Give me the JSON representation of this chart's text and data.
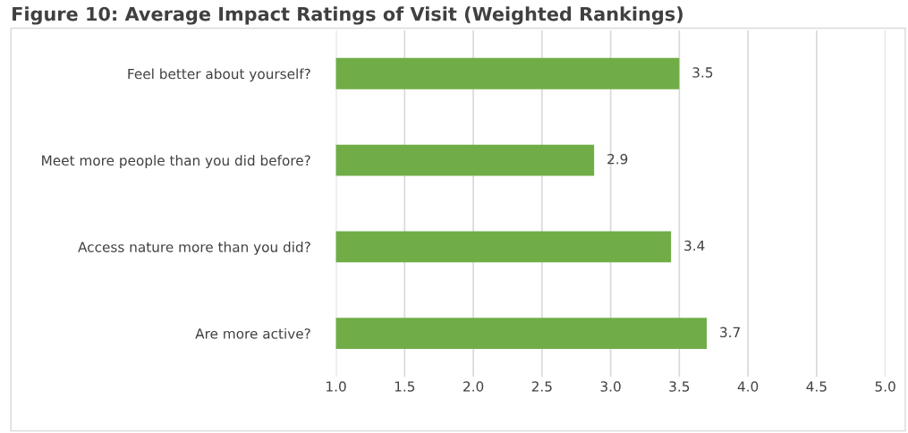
{
  "chart_data": {
    "type": "bar",
    "orientation": "horizontal",
    "title": "Figure 10: Average Impact Ratings of Visit (Weighted Rankings)",
    "categories": [
      "Feel better about yourself?",
      "Meet more people than you did before?",
      "Access nature more than you did?",
      "Are more active?"
    ],
    "values": [
      3.5,
      2.88,
      3.44,
      3.7
    ],
    "value_labels": [
      "3.5",
      "2.9",
      "3.4",
      "3.7"
    ],
    "color": "#70ad47",
    "xlim": [
      1.0,
      5.0
    ],
    "xticks": [
      {
        "value": 1.0,
        "label": "1.0"
      },
      {
        "value": 1.5,
        "label": "1.5"
      },
      {
        "value": 2.0,
        "label": "2.0"
      },
      {
        "value": 2.5,
        "label": "2.5"
      },
      {
        "value": 3.0,
        "label": "3.0"
      },
      {
        "value": 3.5,
        "label": "3.5"
      },
      {
        "value": 4.0,
        "label": "4.0"
      },
      {
        "value": 4.5,
        "label": "4.5"
      },
      {
        "value": 5.0,
        "label": "5.0"
      }
    ],
    "grid": "x",
    "legend": false
  }
}
